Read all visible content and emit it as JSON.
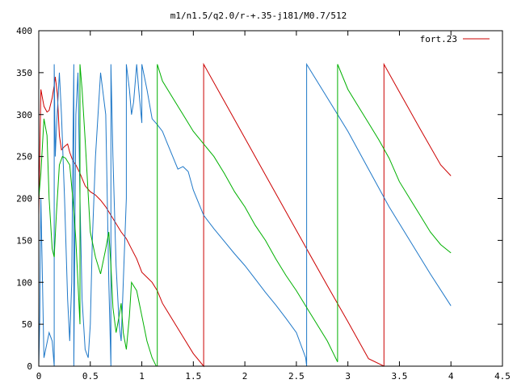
{
  "chart_data": {
    "type": "line",
    "title": "m1/n1.5/q2.0/r-+.35-j181/M0.7/512",
    "xlabel": "",
    "ylabel": "",
    "xlim": [
      0,
      4.5
    ],
    "ylim": [
      0,
      400
    ],
    "x_ticks": [
      0,
      0.5,
      1,
      1.5,
      2,
      2.5,
      3,
      3.5,
      4,
      4.5
    ],
    "x_tick_labels": [
      "0",
      "0.5",
      "1",
      "1.5",
      "2",
      "2.5",
      "3",
      "3.5",
      "4",
      "4.5"
    ],
    "y_ticks": [
      0,
      50,
      100,
      150,
      200,
      250,
      300,
      350,
      400
    ],
    "y_tick_labels": [
      "0",
      "50",
      "100",
      "150",
      "200",
      "250",
      "300",
      "350",
      "400"
    ],
    "grid": false,
    "legend_position": "top-right",
    "series": [
      {
        "name": "fort.23",
        "color": "#cc0000",
        "x": [
          0,
          0.02,
          0.05,
          0.08,
          0.1,
          0.13,
          0.15,
          0.16,
          0.18,
          0.2,
          0.22,
          0.25,
          0.28,
          0.3,
          0.33,
          0.36,
          0.4,
          0.45,
          0.5,
          0.55,
          0.6,
          0.65,
          0.7,
          0.75,
          0.8,
          0.85,
          0.9,
          0.95,
          1.0,
          1.05,
          1.1,
          1.15,
          1.2,
          1.3,
          1.4,
          1.5,
          1.6,
          1.6,
          1.8,
          2.0,
          2.2,
          2.4,
          2.6,
          2.8,
          3.0,
          3.2,
          3.35,
          3.35,
          3.5,
          3.7,
          3.9,
          4.0
        ],
        "y": [
          180,
          330,
          310,
          303,
          305,
          320,
          335,
          345,
          325,
          275,
          258,
          262,
          265,
          255,
          245,
          240,
          230,
          215,
          208,
          204,
          198,
          190,
          180,
          170,
          160,
          152,
          140,
          128,
          112,
          106,
          100,
          90,
          75,
          55,
          35,
          15,
          0,
          360,
          316,
          272,
          228,
          184,
          140,
          96,
          53,
          9,
          0,
          360,
          327,
          283,
          240,
          227
        ]
      },
      {
        "name": "",
        "color": "#1f78c8",
        "x": [
          0,
          0.01,
          0.02,
          0.05,
          0.1,
          0.13,
          0.15,
          0.15,
          0.16,
          0.17,
          0.2,
          0.22,
          0.25,
          0.28,
          0.3,
          0.32,
          0.33,
          0.34,
          0.34,
          0.35,
          0.36,
          0.38,
          0.4,
          0.42,
          0.45,
          0.48,
          0.5,
          0.52,
          0.55,
          0.6,
          0.65,
          0.68,
          0.7,
          0.7,
          0.72,
          0.75,
          0.78,
          0.8,
          0.82,
          0.85,
          0.85,
          0.88,
          0.9,
          0.92,
          0.95,
          0.97,
          1.0,
          1.0,
          1.05,
          1.1,
          1.15,
          1.2,
          1.25,
          1.3,
          1.35,
          1.4,
          1.45,
          1.5,
          1.55,
          1.6,
          1.7,
          1.8,
          1.9,
          2.0,
          2.1,
          2.2,
          2.3,
          2.4,
          2.5,
          2.59,
          2.6,
          2.6,
          2.8,
          3.0,
          3.2,
          3.4,
          3.6,
          3.8,
          4.0
        ],
        "y": [
          0,
          60,
          200,
          10,
          40,
          30,
          0,
          360,
          250,
          280,
          350,
          300,
          200,
          80,
          30,
          100,
          250,
          360,
          0,
          150,
          300,
          350,
          200,
          80,
          20,
          10,
          50,
          150,
          250,
          350,
          300,
          100,
          0,
          360,
          250,
          120,
          50,
          30,
          100,
          200,
          360,
          330,
          300,
          315,
          360,
          330,
          290,
          360,
          330,
          295,
          288,
          280,
          265,
          250,
          235,
          238,
          232,
          210,
          195,
          180,
          164,
          149,
          134,
          120,
          104,
          88,
          73,
          57,
          40,
          10,
          0,
          360,
          320,
          280,
          235,
          190,
          150,
          110,
          72
        ]
      },
      {
        "name": "",
        "color": "#00b000",
        "x": [
          0,
          0.02,
          0.05,
          0.08,
          0.1,
          0.13,
          0.15,
          0.17,
          0.2,
          0.23,
          0.26,
          0.3,
          0.33,
          0.35,
          0.36,
          0.38,
          0.4,
          0.4,
          0.42,
          0.45,
          0.5,
          0.55,
          0.6,
          0.65,
          0.68,
          0.7,
          0.72,
          0.75,
          0.78,
          0.8,
          0.82,
          0.85,
          0.88,
          0.9,
          0.95,
          1.0,
          1.05,
          1.1,
          1.12,
          1.14,
          1.15,
          1.15,
          1.2,
          1.3,
          1.4,
          1.5,
          1.6,
          1.7,
          1.8,
          1.9,
          2.0,
          2.1,
          2.2,
          2.3,
          2.4,
          2.5,
          2.6,
          2.7,
          2.8,
          2.9,
          2.9,
          3.0,
          3.1,
          3.2,
          3.3,
          3.4,
          3.5,
          3.6,
          3.7,
          3.8,
          3.9,
          4.0
        ],
        "y": [
          200,
          230,
          295,
          275,
          200,
          140,
          130,
          180,
          240,
          250,
          248,
          240,
          200,
          170,
          150,
          100,
          50,
          360,
          330,
          270,
          160,
          130,
          110,
          140,
          160,
          120,
          70,
          40,
          60,
          75,
          40,
          20,
          60,
          100,
          90,
          60,
          30,
          10,
          5,
          0,
          0,
          360,
          340,
          320,
          300,
          280,
          265,
          250,
          230,
          208,
          190,
          168,
          150,
          128,
          108,
          90,
          70,
          50,
          30,
          5,
          360,
          330,
          310,
          290,
          270,
          248,
          220,
          200,
          180,
          160,
          145,
          135
        ]
      }
    ]
  }
}
